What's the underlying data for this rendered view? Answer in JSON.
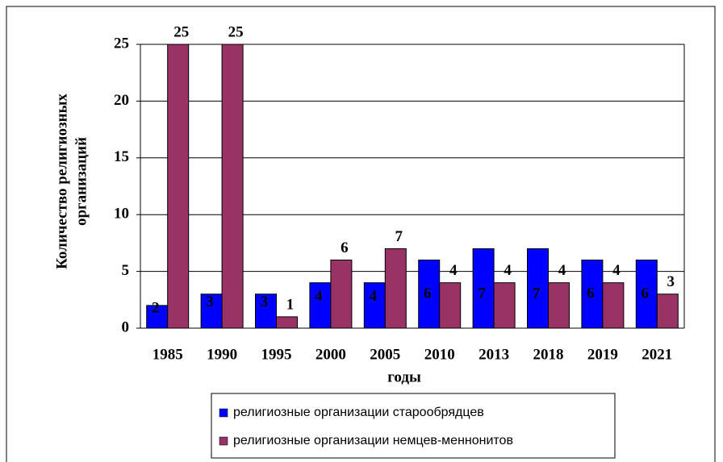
{
  "chart_data": {
    "type": "bar",
    "xlabel": "годы",
    "ylabel": [
      "Количество религиозных",
      "организаций"
    ],
    "categories": [
      "1985",
      "1990",
      "1995",
      "2000",
      "2005",
      "2010",
      "2013",
      "2018",
      "2019",
      "2021"
    ],
    "series": [
      {
        "name": "религиозные организации старообрядцев",
        "color": "#0000ff",
        "values": [
          2,
          3,
          3,
          4,
          4,
          6,
          7,
          7,
          6,
          6
        ]
      },
      {
        "name": "религиозные организации немцев-меннонитов",
        "color": "#993366",
        "values": [
          25,
          25,
          1,
          6,
          7,
          4,
          4,
          4,
          4,
          3
        ]
      }
    ],
    "ylim": [
      0,
      25
    ],
    "yticks": [
      0,
      5,
      10,
      15,
      20,
      25
    ],
    "grid": true
  }
}
